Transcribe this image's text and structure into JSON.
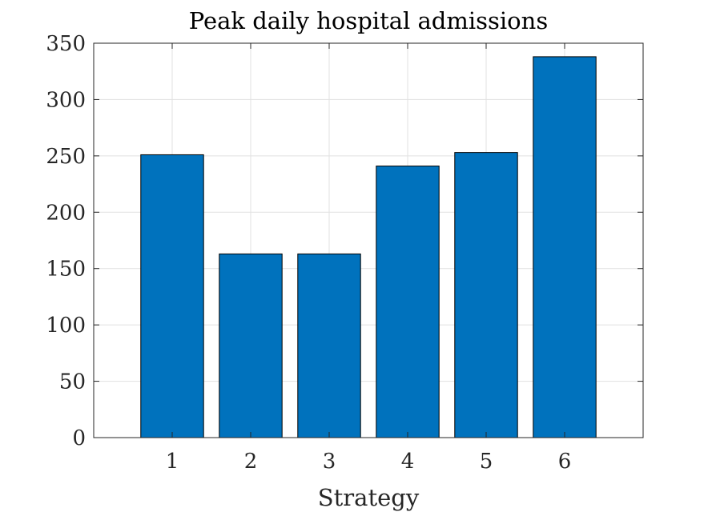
{
  "chart_data": {
    "type": "bar",
    "title": "Peak daily hospital admissions",
    "xlabel": "Strategy",
    "ylabel": "",
    "categories": [
      "1",
      "2",
      "3",
      "4",
      "5",
      "6"
    ],
    "values": [
      251,
      163,
      163,
      241,
      253,
      338
    ],
    "xlim": [
      0,
      7
    ],
    "ylim": [
      0,
      350
    ],
    "yticks": [
      "0",
      "50",
      "100",
      "150",
      "200",
      "250",
      "300",
      "350"
    ],
    "grid": true,
    "bar_color": "#0072BD",
    "edge_color": "#000000"
  }
}
